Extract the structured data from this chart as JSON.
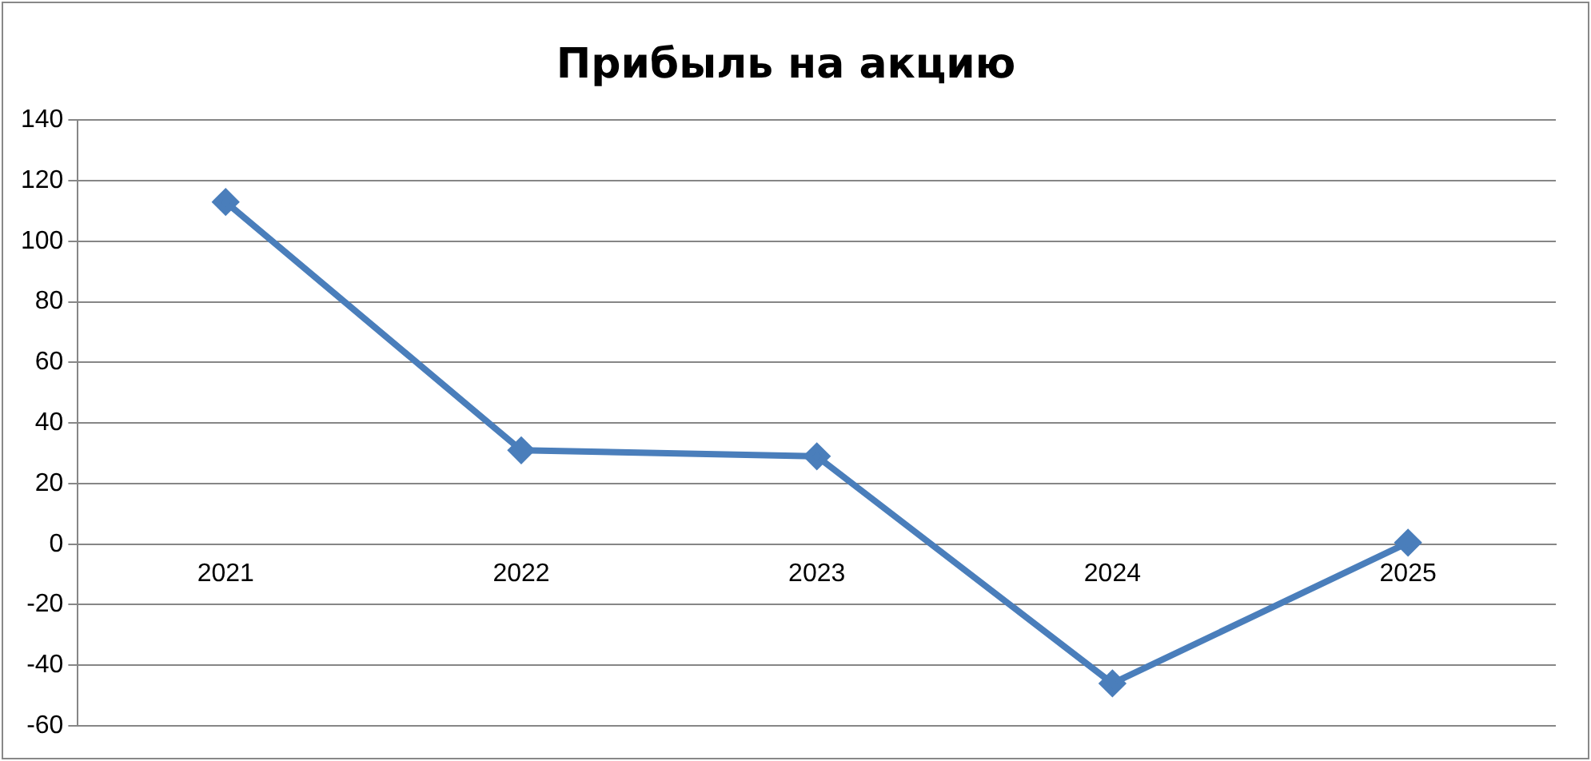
{
  "chart_data": {
    "type": "line",
    "title": "Прибыль на акцию",
    "categories": [
      "2021",
      "2022",
      "2023",
      "2024",
      "2025"
    ],
    "series": [
      {
        "color": "#4a7ebb",
        "values": [
          113,
          31,
          29,
          -46,
          0.5
        ]
      }
    ],
    "ylim": [
      -60,
      140
    ],
    "yticks": [
      -60,
      -40,
      -20,
      0,
      20,
      40,
      60,
      80,
      100,
      120,
      140
    ],
    "grid": "y",
    "legend": false,
    "marker": "diamond",
    "line_style": "solid"
  }
}
